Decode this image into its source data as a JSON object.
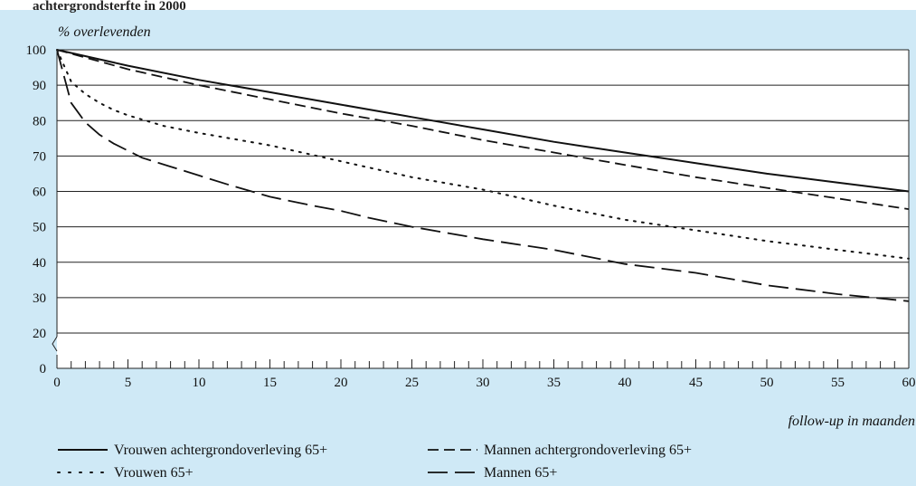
{
  "header": {
    "title": "achtergrondsterfte in 2000"
  },
  "chart_data": {
    "type": "line",
    "ylabel": "% overlevenden",
    "xlabel": "follow-up in maanden",
    "xlim": [
      0,
      60
    ],
    "ylim": [
      0,
      100
    ],
    "y_axis_break": true,
    "x_ticks": [
      0,
      5,
      10,
      15,
      20,
      25,
      30,
      35,
      40,
      45,
      50,
      55,
      60
    ],
    "y_ticks": [
      0,
      20,
      30,
      40,
      50,
      60,
      70,
      80,
      90,
      100
    ],
    "grid": true,
    "legend_position": "bottom",
    "series": [
      {
        "name": "Vrouwen achtergrondoverleving 65+",
        "style": "solid",
        "x": [
          0,
          5,
          10,
          15,
          20,
          25,
          30,
          35,
          40,
          45,
          50,
          55,
          60
        ],
        "y": [
          100,
          95.5,
          91.5,
          88,
          84.5,
          81,
          77.5,
          74,
          71,
          68,
          65,
          62.5,
          60
        ]
      },
      {
        "name": "Mannen achtergrondoverleving 65+",
        "style": "long-dash",
        "x": [
          0,
          5,
          10,
          15,
          20,
          25,
          30,
          35,
          40,
          45,
          50,
          55,
          60
        ],
        "y": [
          100,
          94.5,
          90,
          86,
          82,
          78.5,
          74.5,
          71,
          67.5,
          64,
          61,
          58,
          55
        ]
      },
      {
        "name": "Vrouwen 65+",
        "style": "dotted",
        "x": [
          0,
          1,
          2,
          3,
          4,
          5,
          7.5,
          10,
          15,
          20,
          25,
          30,
          35,
          40,
          45,
          50,
          55,
          60
        ],
        "y": [
          100,
          91,
          87.5,
          85,
          83,
          81.5,
          78.5,
          76.5,
          73,
          68.5,
          64,
          60.5,
          56,
          52,
          49,
          46,
          43.5,
          41
        ]
      },
      {
        "name": "Mannen 65+",
        "style": "dash",
        "x": [
          0,
          1,
          2,
          3,
          4,
          5,
          6,
          8,
          10,
          12,
          15,
          18,
          20,
          22,
          25,
          30,
          35,
          40,
          45,
          50,
          55,
          60
        ],
        "y": [
          100,
          85,
          79.5,
          76,
          73.5,
          71.5,
          69.5,
          67,
          64.5,
          62,
          58.5,
          56,
          54.5,
          52.5,
          50,
          46.5,
          43.5,
          39.5,
          37,
          33.5,
          31,
          29
        ]
      }
    ]
  }
}
